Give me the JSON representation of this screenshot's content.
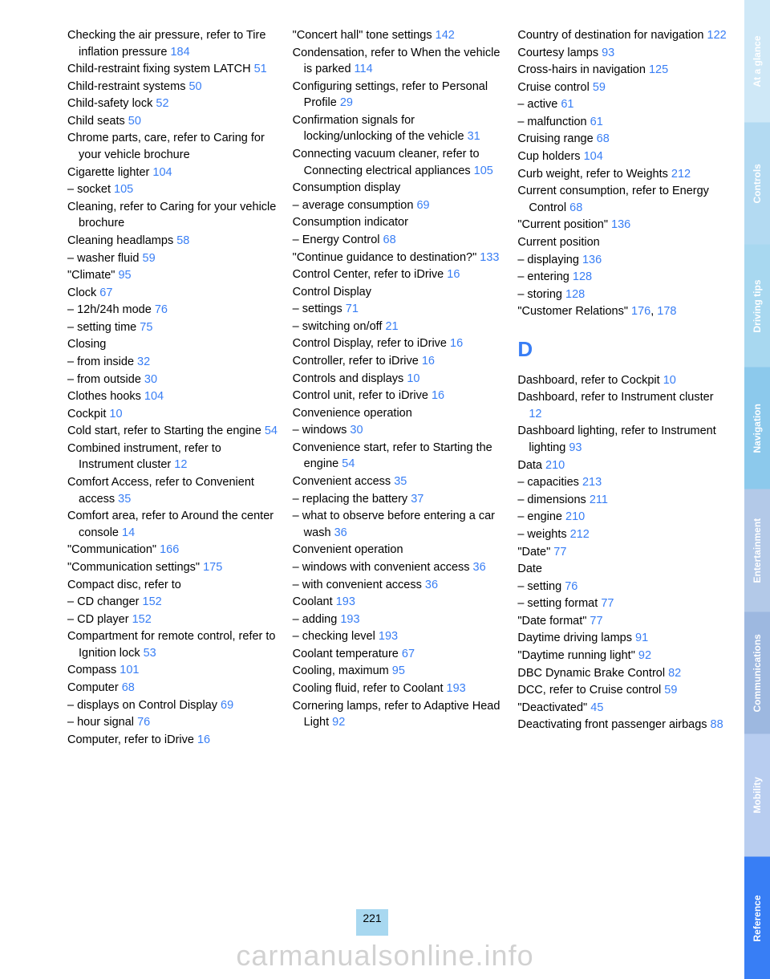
{
  "pageNumber": "221",
  "watermark": "carmanualsonline.info",
  "linkColor": "#387ef5",
  "sidebar": [
    {
      "label": "At a glance",
      "bg": "#cfe8f7",
      "fg": "#ffffff"
    },
    {
      "label": "Controls",
      "bg": "#b3daf2",
      "fg": "#ffffff"
    },
    {
      "label": "Driving tips",
      "bg": "#a8d8f0",
      "fg": "#ffffff"
    },
    {
      "label": "Navigation",
      "bg": "#8cc9ec",
      "fg": "#ffffff"
    },
    {
      "label": "Entertainment",
      "bg": "#b3c9e8",
      "fg": "#ffffff"
    },
    {
      "label": "Communications",
      "bg": "#9db8e0",
      "fg": "#ffffff"
    },
    {
      "label": "Mobility",
      "bg": "#b8cdf0",
      "fg": "#ffffff"
    },
    {
      "label": "Reference",
      "bg": "#387ef5",
      "fg": "#ffffff"
    }
  ],
  "col1": [
    {
      "t": "Checking the air pressure, refer to Tire inflation pressure ",
      "r": "184",
      "i": true
    },
    {
      "t": "Child-restraint fixing system LATCH ",
      "r": "51",
      "i": true
    },
    {
      "t": "Child-restraint systems ",
      "r": "50"
    },
    {
      "t": "Child-safety lock ",
      "r": "52"
    },
    {
      "t": "Child seats ",
      "r": "50"
    },
    {
      "t": "Chrome parts, care, refer to Caring for your vehicle brochure",
      "i": true
    },
    {
      "t": "Cigarette lighter ",
      "r": "104"
    },
    {
      "t": "– socket ",
      "r": "105"
    },
    {
      "t": "Cleaning, refer to Caring for your vehicle brochure",
      "i": true
    },
    {
      "t": "Cleaning headlamps ",
      "r": "58"
    },
    {
      "t": "– washer fluid ",
      "r": "59"
    },
    {
      "t": "\"Climate\" ",
      "r": "95"
    },
    {
      "t": "Clock ",
      "r": "67"
    },
    {
      "t": "– 12h/24h mode ",
      "r": "76"
    },
    {
      "t": "– setting time ",
      "r": "75"
    },
    {
      "t": "Closing"
    },
    {
      "t": "– from inside ",
      "r": "32"
    },
    {
      "t": "– from outside ",
      "r": "30"
    },
    {
      "t": "Clothes hooks ",
      "r": "104"
    },
    {
      "t": "Cockpit ",
      "r": "10"
    },
    {
      "t": "Cold start, refer to Starting the engine ",
      "r": "54",
      "i": true
    },
    {
      "t": "Combined instrument, refer to Instrument cluster ",
      "r": "12",
      "i": true
    },
    {
      "t": "Comfort Access, refer to Convenient access ",
      "r": "35",
      "i": true
    },
    {
      "t": "Comfort area, refer to Around the center console ",
      "r": "14",
      "i": true
    },
    {
      "t": "\"Communication\" ",
      "r": "166"
    },
    {
      "t": "\"Communication settings\" ",
      "r": "175",
      "i": true
    },
    {
      "t": "Compact disc, refer to"
    },
    {
      "t": "– CD changer ",
      "r": "152"
    },
    {
      "t": "– CD player ",
      "r": "152"
    },
    {
      "t": "Compartment for remote control, refer to Ignition lock ",
      "r": "53",
      "i": true
    },
    {
      "t": "Compass ",
      "r": "101"
    },
    {
      "t": "Computer ",
      "r": "68"
    },
    {
      "t": "– displays on Control Display ",
      "r": "69",
      "i": true
    },
    {
      "t": "– hour signal ",
      "r": "76"
    },
    {
      "t": "Computer, refer to iDrive ",
      "r": "16"
    }
  ],
  "col2": [
    {
      "t": "\"Concert hall\" tone settings ",
      "r": "142",
      "i": true
    },
    {
      "t": "Condensation, refer to When the vehicle is parked ",
      "r": "114",
      "i": true
    },
    {
      "t": "Configuring settings, refer to Personal Profile ",
      "r": "29",
      "i": true
    },
    {
      "t": "Confirmation signals for locking/unlocking of the vehicle ",
      "r": "31",
      "i": true
    },
    {
      "t": "Connecting vacuum cleaner, refer to Connecting electrical appliances ",
      "r": "105",
      "i": true
    },
    {
      "t": "Consumption display"
    },
    {
      "t": "– average consumption ",
      "r": "69"
    },
    {
      "t": "Consumption indicator"
    },
    {
      "t": "– Energy Control ",
      "r": "68"
    },
    {
      "t": "\"Continue guidance to destination?\" ",
      "r": "133",
      "i": true
    },
    {
      "t": "Control Center, refer to iDrive ",
      "r": "16",
      "i": true
    },
    {
      "t": "Control Display"
    },
    {
      "t": "– settings ",
      "r": "71"
    },
    {
      "t": "– switching on/off ",
      "r": "21"
    },
    {
      "t": "Control Display, refer to iDrive ",
      "r": "16",
      "i": true
    },
    {
      "t": "Controller, refer to iDrive ",
      "r": "16"
    },
    {
      "t": "Controls and displays ",
      "r": "10"
    },
    {
      "t": "Control unit, refer to iDrive ",
      "r": "16"
    },
    {
      "t": "Convenience operation"
    },
    {
      "t": "– windows ",
      "r": "30"
    },
    {
      "t": "Convenience start, refer to Starting the engine ",
      "r": "54",
      "i": true
    },
    {
      "t": "Convenient access ",
      "r": "35"
    },
    {
      "t": "– replacing the battery ",
      "r": "37"
    },
    {
      "t": "– what to observe before entering a car wash ",
      "r": "36",
      "i": true
    },
    {
      "t": "Convenient operation"
    },
    {
      "t": "– windows with convenient access ",
      "r": "36",
      "i": true
    },
    {
      "t": "– with convenient access ",
      "r": "36"
    },
    {
      "t": "Coolant ",
      "r": "193"
    },
    {
      "t": "– adding ",
      "r": "193"
    },
    {
      "t": "– checking level ",
      "r": "193"
    },
    {
      "t": "Coolant temperature ",
      "r": "67"
    },
    {
      "t": "Cooling, maximum ",
      "r": "95"
    },
    {
      "t": "Cooling fluid, refer to Coolant ",
      "r": "193",
      "i": true
    },
    {
      "t": "Cornering lamps, refer to Adaptive Head Light ",
      "r": "92",
      "i": true
    }
  ],
  "col3": [
    {
      "t": "Country of destination for navigation ",
      "r": "122",
      "i": true
    },
    {
      "t": "Courtesy lamps ",
      "r": "93"
    },
    {
      "t": "Cross-hairs in navigation ",
      "r": "125"
    },
    {
      "t": "Cruise control ",
      "r": "59"
    },
    {
      "t": "– active ",
      "r": "61"
    },
    {
      "t": "– malfunction ",
      "r": "61"
    },
    {
      "t": "Cruising range ",
      "r": "68"
    },
    {
      "t": "Cup holders ",
      "r": "104"
    },
    {
      "t": "Curb weight, refer to Weights ",
      "r": "212",
      "i": true
    },
    {
      "t": "Current consumption, refer to Energy Control ",
      "r": "68",
      "i": true
    },
    {
      "t": "\"Current position\" ",
      "r": "136"
    },
    {
      "t": "Current position"
    },
    {
      "t": "– displaying ",
      "r": "136"
    },
    {
      "t": "– entering ",
      "r": "128"
    },
    {
      "t": "– storing ",
      "r": "128"
    },
    {
      "t": "\"Customer Relations\" ",
      "r": "176",
      "r2": "178",
      "i": true
    },
    {
      "letter": "D"
    },
    {
      "t": "Dashboard, refer to Cockpit ",
      "r": "10",
      "i": true
    },
    {
      "t": "Dashboard, refer to Instrument cluster ",
      "r": "12",
      "i": true
    },
    {
      "t": "Dashboard lighting, refer to Instrument lighting ",
      "r": "93",
      "i": true
    },
    {
      "t": "Data ",
      "r": "210"
    },
    {
      "t": "– capacities ",
      "r": "213"
    },
    {
      "t": "– dimensions ",
      "r": "211"
    },
    {
      "t": "– engine ",
      "r": "210"
    },
    {
      "t": "– weights ",
      "r": "212"
    },
    {
      "t": "\"Date\" ",
      "r": "77"
    },
    {
      "t": "Date"
    },
    {
      "t": "– setting ",
      "r": "76"
    },
    {
      "t": "– setting format ",
      "r": "77"
    },
    {
      "t": "\"Date format\" ",
      "r": "77"
    },
    {
      "t": "Daytime driving lamps ",
      "r": "91"
    },
    {
      "t": "\"Daytime running light\" ",
      "r": "92"
    },
    {
      "t": "DBC Dynamic Brake Control ",
      "r": "82",
      "i": true
    },
    {
      "t": "DCC, refer to Cruise control ",
      "r": "59",
      "i": true
    },
    {
      "t": "\"Deactivated\" ",
      "r": "45"
    },
    {
      "t": "Deactivating front passenger airbags ",
      "r": "88",
      "i": true
    }
  ]
}
